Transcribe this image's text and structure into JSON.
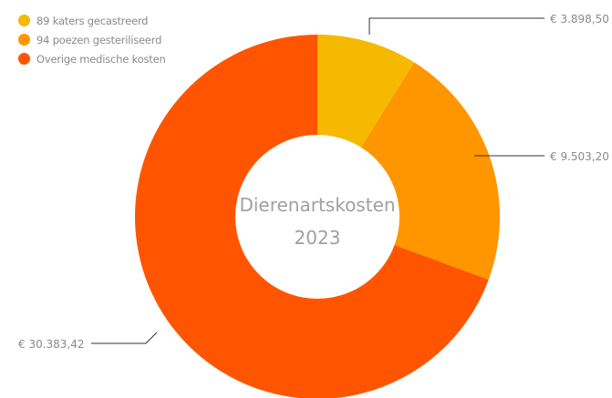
{
  "chart_data": {
    "type": "pie",
    "variant": "donut",
    "center_title": [
      "Dierenartskosten",
      "2023"
    ],
    "series": [
      {
        "name": "89 katers gecastreerd",
        "value": 3898.5,
        "label": "€ 3.898,50",
        "color": "#F7B800"
      },
      {
        "name": "94 poezen gesteriliseerd",
        "value": 9503.2,
        "label": "€ 9.503,20",
        "color": "#FF9600"
      },
      {
        "name": "Overige medische kosten",
        "value": 30383.42,
        "label": "€ 30.383,42",
        "color": "#FF5500"
      }
    ],
    "legend_position": "top-left"
  }
}
